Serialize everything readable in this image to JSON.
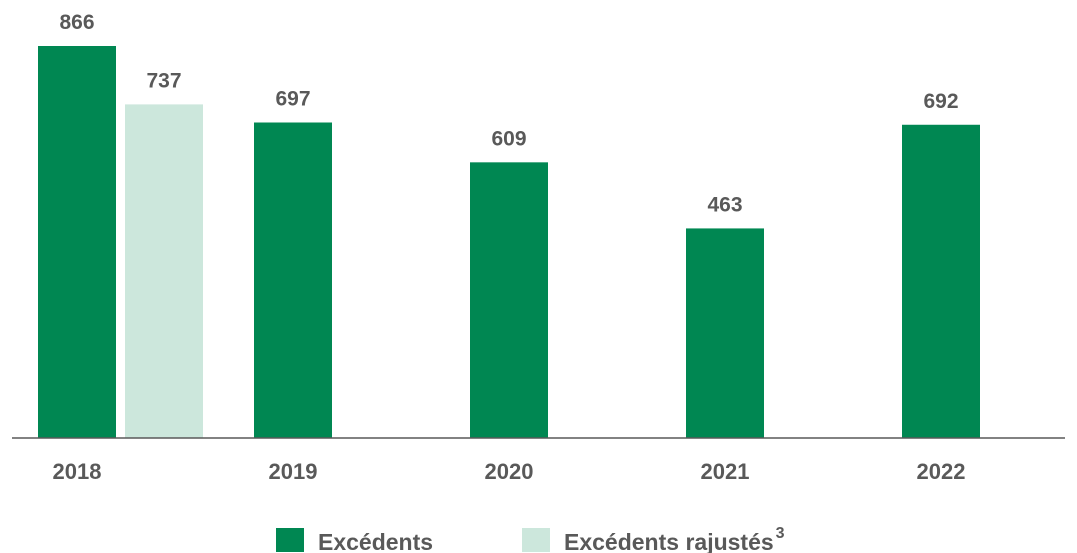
{
  "chart_data": {
    "type": "bar",
    "categories": [
      "2018",
      "2019",
      "2020",
      "2021",
      "2022"
    ],
    "series": [
      {
        "name": "Excédents",
        "color": "#008752",
        "values": [
          866,
          697,
          609,
          463,
          692
        ]
      },
      {
        "name": "Excédents rajustés",
        "name_sup": "3",
        "color": "#cce7dc",
        "values": [
          737,
          null,
          null,
          null,
          null
        ]
      }
    ],
    "ylim": [
      0,
      1000
    ],
    "grid": false,
    "legend_position": "bottom-center"
  }
}
